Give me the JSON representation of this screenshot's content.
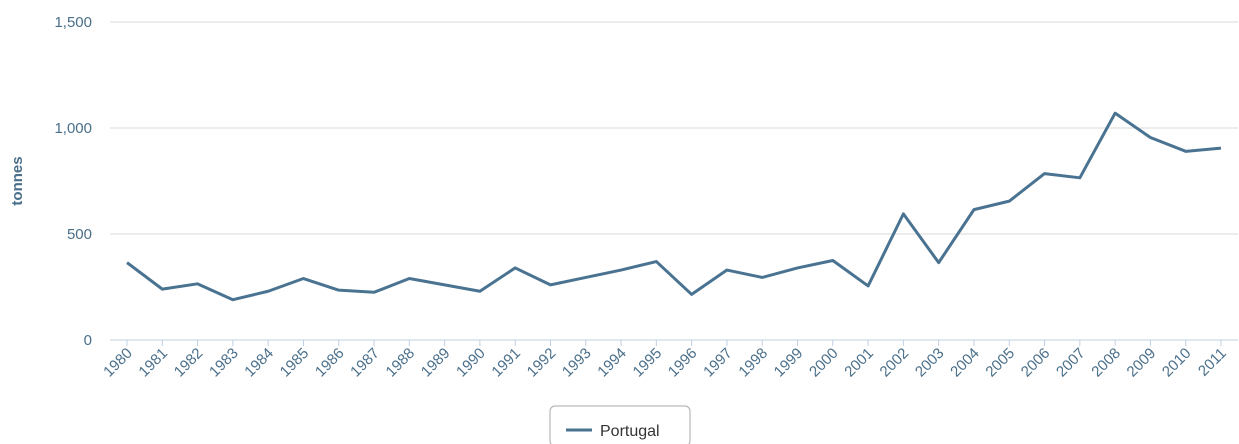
{
  "chart_data": {
    "type": "line",
    "y_label": "tonnes",
    "categories": [
      "1980",
      "1981",
      "1982",
      "1983",
      "1984",
      "1985",
      "1986",
      "1987",
      "1988",
      "1989",
      "1990",
      "1991",
      "1992",
      "1993",
      "1994",
      "1995",
      "1996",
      "1997",
      "1998",
      "1999",
      "2000",
      "2001",
      "2002",
      "2003",
      "2004",
      "2005",
      "2006",
      "2007",
      "2008",
      "2009",
      "2010",
      "2011"
    ],
    "series": [
      {
        "name": "Portugal",
        "color": "#4a7391",
        "values": [
          365,
          240,
          265,
          190,
          230,
          290,
          235,
          225,
          290,
          260,
          230,
          340,
          260,
          295,
          330,
          370,
          215,
          330,
          295,
          340,
          375,
          255,
          595,
          365,
          615,
          655,
          785,
          765,
          1070,
          955,
          890,
          905
        ]
      }
    ],
    "ylim": [
      0,
      1500
    ],
    "yticks": [
      0,
      500,
      {
        "value": 1000,
        "label": "1,000"
      },
      {
        "value": 1500,
        "label": "1,500"
      }
    ],
    "grid": true,
    "legend": "bottom"
  }
}
